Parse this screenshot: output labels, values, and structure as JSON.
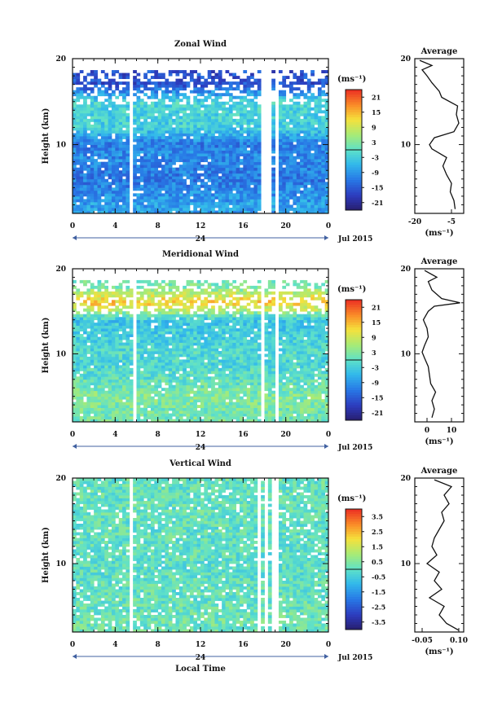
{
  "chart_data": [
    {
      "type": "heatmap",
      "title": "Zonal Wind",
      "ylabel": "Height (km)",
      "xlabel": "",
      "xlim": [
        0,
        24
      ],
      "ylim": [
        2,
        20
      ],
      "x_ticks": [
        "0",
        "4",
        "8",
        "12",
        "16",
        "20",
        "0"
      ],
      "y_ticks": [
        "10",
        "20"
      ],
      "day_marker": "24",
      "date_label": "Jul 2015",
      "colorbar": {
        "unit": "(ms⁻¹)",
        "range": [
          -24,
          24
        ],
        "ticks": [
          "21",
          "15",
          "9",
          "3",
          "-3",
          "-9",
          "-15",
          "-21"
        ]
      },
      "data_gaps_hours": [
        5.6,
        17.8,
        18.3,
        19.2
      ],
      "height_profile_by_km": [
        {
          "height_km": 3,
          "value": -8
        },
        {
          "height_km": 6,
          "value": -12
        },
        {
          "height_km": 9,
          "value": -10
        },
        {
          "height_km": 10,
          "value": -12
        },
        {
          "height_km": 12,
          "value": -3
        },
        {
          "height_km": 15,
          "value": -2
        },
        {
          "height_km": 17,
          "value": -16
        }
      ],
      "average_profile": {
        "title": "Average",
        "unit": "(ms⁻¹)",
        "xlim": [
          -20,
          0
        ],
        "x_ticks": [
          "-20",
          "-5"
        ],
        "y_ticks": [
          "10",
          "20"
        ],
        "points": [
          {
            "value": -3.5,
            "height_km": 2.5
          },
          {
            "value": -4,
            "height_km": 3.5
          },
          {
            "value": -5.5,
            "height_km": 4.5
          },
          {
            "value": -5,
            "height_km": 5.5
          },
          {
            "value": -7,
            "height_km": 6.5
          },
          {
            "value": -8.5,
            "height_km": 7.5
          },
          {
            "value": -7,
            "height_km": 8.5
          },
          {
            "value": -13,
            "height_km": 9.5
          },
          {
            "value": -14,
            "height_km": 10
          },
          {
            "value": -12,
            "height_km": 10.8
          },
          {
            "value": -4,
            "height_km": 11.5
          },
          {
            "value": -2,
            "height_km": 12.5
          },
          {
            "value": -3,
            "height_km": 13.5
          },
          {
            "value": -2.5,
            "height_km": 14.5
          },
          {
            "value": -9,
            "height_km": 15.5
          },
          {
            "value": -10,
            "height_km": 16.2
          },
          {
            "value": -13,
            "height_km": 17.2
          },
          {
            "value": -15,
            "height_km": 18
          },
          {
            "value": -17,
            "height_km": 18.7
          },
          {
            "value": -13,
            "height_km": 19.2
          },
          {
            "value": -18,
            "height_km": 19.8
          }
        ]
      }
    },
    {
      "type": "heatmap",
      "title": "Meridional Wind",
      "ylabel": "Height (km)",
      "xlabel": "",
      "xlim": [
        0,
        24
      ],
      "ylim": [
        2,
        20
      ],
      "x_ticks": [
        "0",
        "4",
        "8",
        "12",
        "16",
        "20",
        "0"
      ],
      "y_ticks": [
        "10",
        "20"
      ],
      "day_marker": "24",
      "date_label": "Jul 2015",
      "colorbar": {
        "unit": "(ms⁻¹)",
        "range": [
          -24,
          24
        ],
        "ticks": [
          "21",
          "15",
          "9",
          "3",
          "-3",
          "-9",
          "-15",
          "-21"
        ]
      },
      "data_gaps_hours": [
        5.8,
        17.8,
        19.2
      ],
      "height_profile_by_km": [
        {
          "height_km": 3,
          "value": 2
        },
        {
          "height_km": 5,
          "value": 3
        },
        {
          "height_km": 7,
          "value": 0
        },
        {
          "height_km": 9,
          "value": -2
        },
        {
          "height_km": 10,
          "value": -1
        },
        {
          "height_km": 12,
          "value": -3
        },
        {
          "height_km": 14,
          "value": -4
        },
        {
          "height_km": 16,
          "value": 14
        },
        {
          "height_km": 18,
          "value": 2
        }
      ],
      "average_profile": {
        "title": "Average",
        "unit": "(ms⁻¹)",
        "xlim": [
          -5,
          15
        ],
        "x_ticks": [
          "0",
          "10"
        ],
        "y_ticks": [
          "10",
          "20"
        ],
        "points": [
          {
            "value": 2,
            "height_km": 2.5
          },
          {
            "value": 3,
            "height_km": 3.5
          },
          {
            "value": 2,
            "height_km": 4.5
          },
          {
            "value": 3.5,
            "height_km": 5.5
          },
          {
            "value": 1.5,
            "height_km": 6.5
          },
          {
            "value": 1,
            "height_km": 7.5
          },
          {
            "value": 0.5,
            "height_km": 8.5
          },
          {
            "value": -1,
            "height_km": 9.5
          },
          {
            "value": -2,
            "height_km": 10.2
          },
          {
            "value": -1,
            "height_km": 11
          },
          {
            "value": 0.5,
            "height_km": 12
          },
          {
            "value": 0,
            "height_km": 13
          },
          {
            "value": -1.5,
            "height_km": 14
          },
          {
            "value": 0.5,
            "height_km": 15
          },
          {
            "value": 3,
            "height_km": 15.6
          },
          {
            "value": 13.5,
            "height_km": 16
          },
          {
            "value": 6,
            "height_km": 16.5
          },
          {
            "value": 2,
            "height_km": 17.5
          },
          {
            "value": 0.5,
            "height_km": 18.5
          },
          {
            "value": 4,
            "height_km": 19
          },
          {
            "value": -1,
            "height_km": 19.8
          }
        ]
      }
    },
    {
      "type": "heatmap",
      "title": "Vertical Wind",
      "ylabel": "Height (km)",
      "xlabel": "Local Time",
      "xlim": [
        0,
        24
      ],
      "ylim": [
        2,
        20
      ],
      "x_ticks": [
        "0",
        "4",
        "8",
        "12",
        "16",
        "20",
        "0"
      ],
      "y_ticks": [
        "10",
        "20"
      ],
      "day_marker": "24",
      "date_label": "Jul 2015",
      "colorbar": {
        "unit": "(ms⁻¹)",
        "range": [
          -4,
          4
        ],
        "ticks": [
          "3.5",
          "2.5",
          "1.5",
          "0.5",
          "-0.5",
          "-1.5",
          "-2.5",
          "-3.5"
        ]
      },
      "data_gaps_hours": [
        5.6,
        17.6,
        18.2,
        19.0
      ],
      "height_profile_by_km": [
        {
          "height_km": 3,
          "value": 0.2
        },
        {
          "height_km": 6,
          "value": 0.1
        },
        {
          "height_km": 9,
          "value": 0.0
        },
        {
          "height_km": 12,
          "value": 0.0
        },
        {
          "height_km": 15,
          "value": 0.05
        },
        {
          "height_km": 18,
          "value": 0.1
        }
      ],
      "average_profile": {
        "title": "Average",
        "unit": "(ms⁻¹)",
        "xlim": [
          -0.08,
          0.12
        ],
        "x_ticks": [
          "-0.05",
          "0.10"
        ],
        "y_ticks": [
          "10",
          "20"
        ],
        "points": [
          {
            "value": 0.1,
            "height_km": 2.2
          },
          {
            "value": 0.05,
            "height_km": 3
          },
          {
            "value": 0.02,
            "height_km": 4
          },
          {
            "value": 0.04,
            "height_km": 5
          },
          {
            "value": -0.02,
            "height_km": 6
          },
          {
            "value": 0.03,
            "height_km": 7
          },
          {
            "value": 0.0,
            "height_km": 8
          },
          {
            "value": 0.02,
            "height_km": 9
          },
          {
            "value": -0.03,
            "height_km": 10
          },
          {
            "value": 0.01,
            "height_km": 11
          },
          {
            "value": -0.01,
            "height_km": 12
          },
          {
            "value": 0.0,
            "height_km": 13
          },
          {
            "value": 0.02,
            "height_km": 14
          },
          {
            "value": 0.04,
            "height_km": 15
          },
          {
            "value": 0.03,
            "height_km": 16
          },
          {
            "value": 0.06,
            "height_km": 17
          },
          {
            "value": 0.04,
            "height_km": 18
          },
          {
            "value": 0.07,
            "height_km": 19
          },
          {
            "value": 0.0,
            "height_km": 19.8
          }
        ]
      }
    }
  ]
}
